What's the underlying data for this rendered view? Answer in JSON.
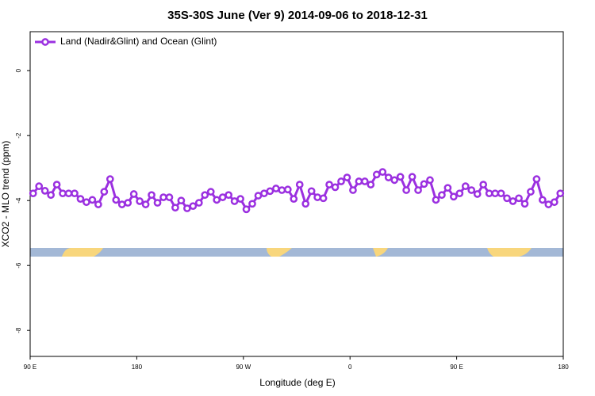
{
  "chart_data": {
    "type": "line",
    "title": "35S-30S June (Ver 9)   2014-09-06 to 2018-12-31",
    "x_label": "Longitude (deg E)",
    "y_label": "XCO2 - MLO trend (ppm)",
    "xlim": [
      90,
      540
    ],
    "ylim": [
      -8.8,
      1.2
    ],
    "xticks": [
      {
        "value": 90,
        "label": "90 E"
      },
      180,
      {
        "value": 270,
        "label": "90 W"
      },
      {
        "value": 360,
        "label": "0"
      },
      {
        "value": 450,
        "label": "90 E"
      },
      {
        "value": 540,
        "label": "180"
      }
    ],
    "yticks": [
      0,
      -2,
      -4,
      -6,
      -8
    ],
    "legend": "top-left",
    "x": [
      92.5,
      97.5,
      102.5,
      107.5,
      112.5,
      117.5,
      122.5,
      127.5,
      132.5,
      137.5,
      142.5,
      147.5,
      152.5,
      157.5,
      162.5,
      167.5,
      172.5,
      177.5,
      182.5,
      187.5,
      192.5,
      197.5,
      202.5,
      207.5,
      212.5,
      217.5,
      222.5,
      227.5,
      232.5,
      237.5,
      242.5,
      247.5,
      252.5,
      257.5,
      262.5,
      267.5,
      272.5,
      277.5,
      282.5,
      287.5,
      292.5,
      297.5,
      302.5,
      307.5,
      312.5,
      317.5,
      322.5,
      327.5,
      332.5,
      337.5,
      342.5,
      347.5,
      352.5,
      357.5,
      362.5,
      367.5,
      372.5,
      377.5,
      382.5,
      387.5,
      392.5,
      397.5,
      402.5,
      407.5,
      412.5,
      417.5,
      422.5,
      427.5,
      432.5,
      437.5,
      442.5,
      447.5,
      452.5,
      457.5,
      462.5,
      467.5,
      472.5,
      477.5,
      482.5,
      487.5,
      492.5,
      497.5,
      502.5,
      507.5,
      512.5,
      517.5,
      522.5,
      527.5,
      532.5,
      537.5
    ],
    "series": [
      {
        "name": "Land (Nadir&Glint) and Ocean (Glint)",
        "color": "#9b30e0",
        "values": [
          -3.78,
          -3.56,
          -3.7,
          -3.83,
          -3.51,
          -3.78,
          -3.78,
          -3.78,
          -3.95,
          -4.05,
          -3.98,
          -4.12,
          -3.73,
          -3.34,
          -3.98,
          -4.12,
          -4.07,
          -3.8,
          -4.02,
          -4.12,
          -3.83,
          -4.07,
          -3.9,
          -3.9,
          -4.22,
          -4.0,
          -4.24,
          -4.17,
          -4.07,
          -3.83,
          -3.73,
          -3.98,
          -3.9,
          -3.83,
          -4.02,
          -3.95,
          -4.27,
          -4.1,
          -3.85,
          -3.78,
          -3.71,
          -3.63,
          -3.68,
          -3.66,
          -3.95,
          -3.51,
          -4.1,
          -3.71,
          -3.9,
          -3.93,
          -3.51,
          -3.59,
          -3.41,
          -3.29,
          -3.68,
          -3.41,
          -3.41,
          -3.51,
          -3.2,
          -3.12,
          -3.29,
          -3.37,
          -3.27,
          -3.68,
          -3.27,
          -3.68,
          -3.49,
          -3.37,
          -3.98,
          -3.83,
          -3.61,
          -3.88,
          -3.78,
          -3.56,
          -3.68,
          -3.8,
          -3.51,
          -3.78,
          -3.78,
          -3.78,
          -3.93,
          -4.02,
          -3.93,
          -4.1,
          -3.73,
          -3.34,
          -3.98,
          -4.12,
          -4.05,
          -3.78
        ]
      }
    ]
  }
}
